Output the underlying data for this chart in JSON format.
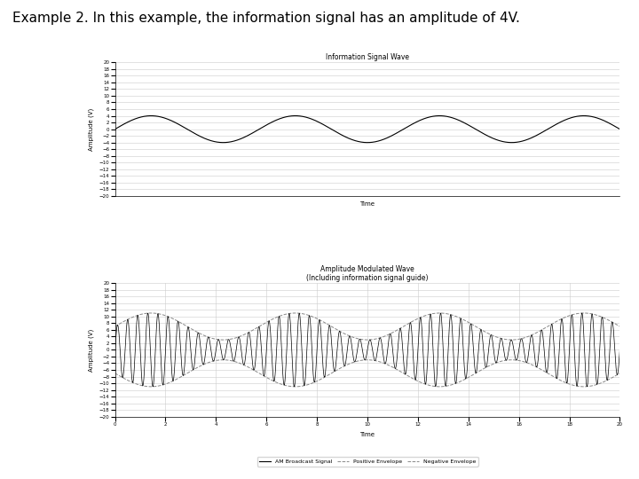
{
  "title_text": "Example 2. In this example, the information signal has an amplitude of 4V.",
  "title_fontsize": 11,
  "plot1_title": "Information Signal Wave",
  "plot1_xlabel": "Time",
  "plot1_ylabel": "Amplitude (V)",
  "plot1_ylim": [
    -20,
    20
  ],
  "plot1_yticks": [
    -20,
    -18,
    -16,
    -14,
    -12,
    -10,
    -8,
    -6,
    -4,
    -2,
    0,
    2,
    4,
    6,
    8,
    10,
    12,
    14,
    16,
    18,
    20
  ],
  "plot1_xlim": [
    0,
    20
  ],
  "plot1_amplitude": 4,
  "plot1_freq": 0.175,
  "plot2_title": "Amplitude Modulated Wave",
  "plot2_title2": "(Including information signal guide)",
  "plot2_xlabel": "Time",
  "plot2_ylabel": "Amplitude (V)",
  "plot2_ylim": [
    -20,
    20
  ],
  "plot2_yticks": [
    -20,
    -18,
    -16,
    -14,
    -12,
    -10,
    -8,
    -6,
    -4,
    -2,
    0,
    2,
    4,
    6,
    8,
    10,
    12,
    14,
    16,
    18,
    20
  ],
  "plot2_xlim": [
    0,
    20
  ],
  "plot2_xticks": [
    0,
    2,
    4,
    6,
    8,
    10,
    12,
    14,
    16,
    18,
    20
  ],
  "carrier_amplitude": 7,
  "carrier_freq": 2.5,
  "info_amplitude": 4,
  "info_freq": 0.175,
  "legend_labels": [
    "AM Broadcast Signal",
    "Positive Envelope",
    "Negative Envelope"
  ],
  "line_color": "#000000",
  "envelope_color": "#888888",
  "bg_color": "#ffffff",
  "grid_color": "#cccccc"
}
